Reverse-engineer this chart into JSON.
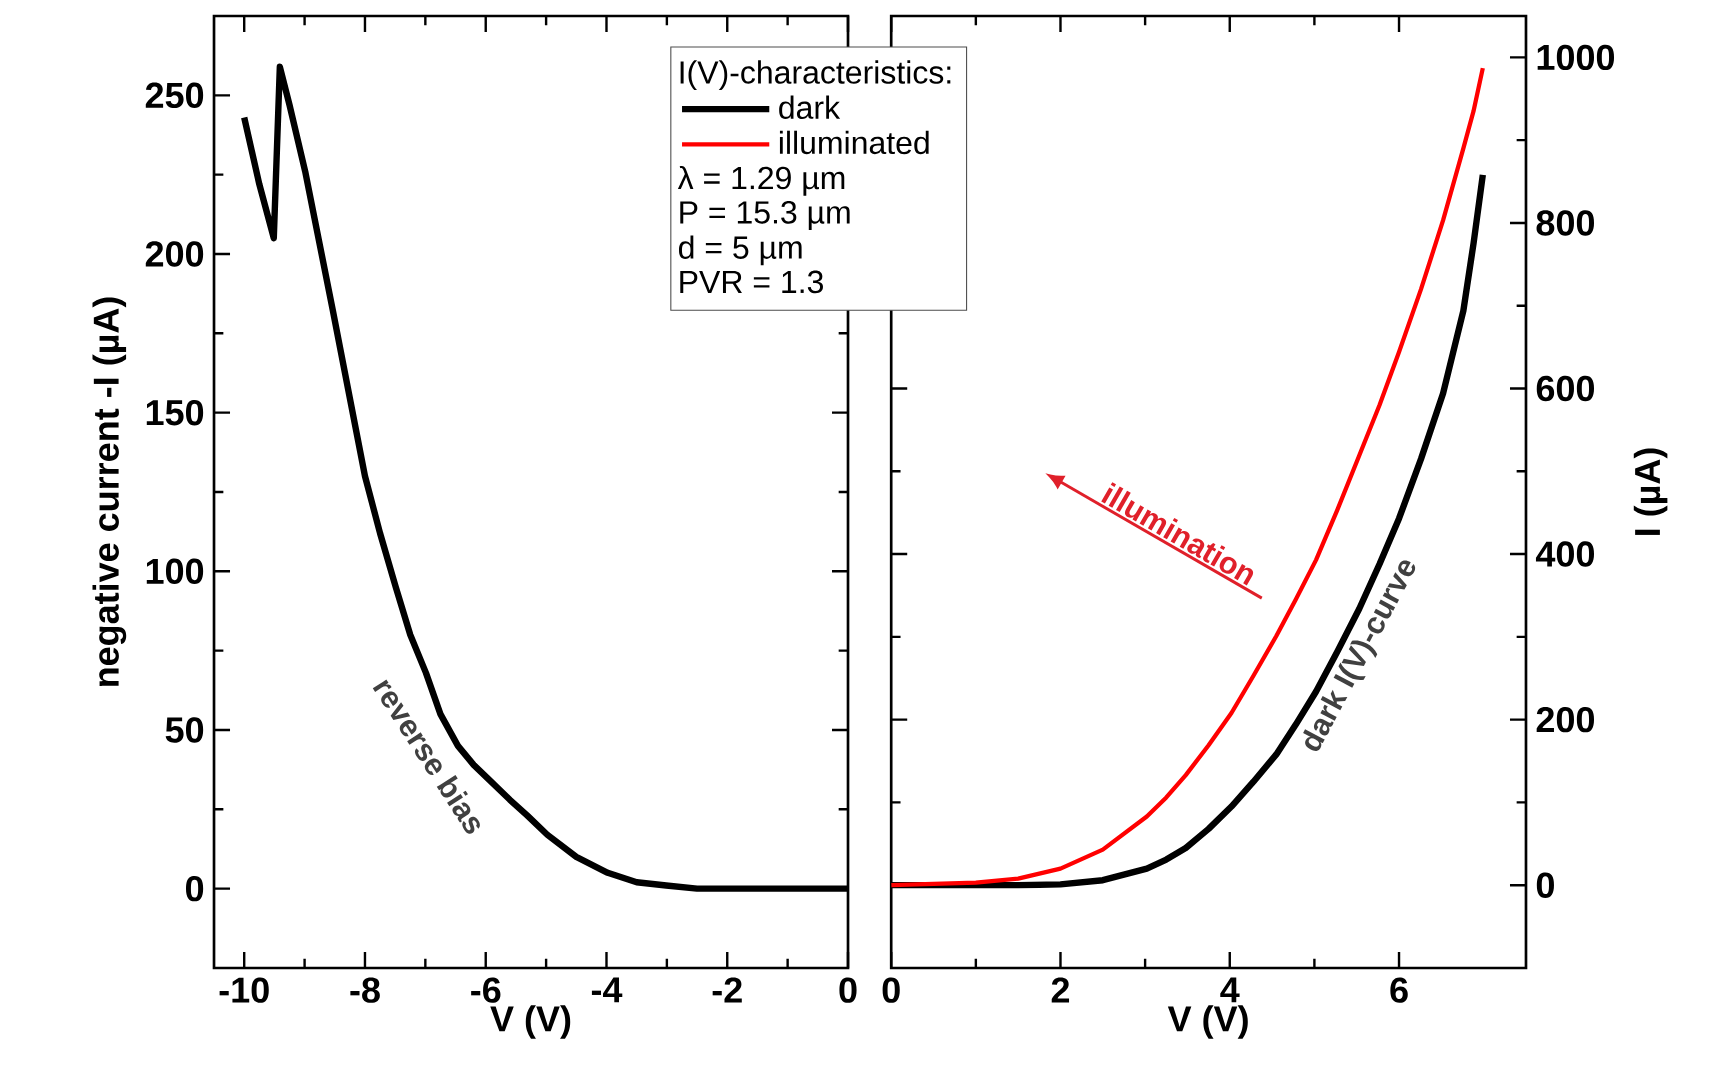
{
  "chart_data": [
    {
      "type": "line",
      "xlabel": "V (V)",
      "ylabel": "negative current -I (µA)",
      "xlim": [
        -10.5,
        0
      ],
      "xticks": [
        -10,
        -8,
        -6,
        -4,
        -2,
        0
      ],
      "ylim": [
        -25,
        275
      ],
      "yticks": [
        0,
        50,
        100,
        150,
        200,
        250
      ],
      "grid": false,
      "legend": false,
      "x": [
        -10,
        -9.75,
        -9.51,
        -9.41,
        -9.25,
        -8.99,
        -8.53,
        -8.0,
        -7.75,
        -7.49,
        -7.25,
        -6.99,
        -6.75,
        -6.46,
        -6.2,
        -5.98,
        -5.6,
        -5.31,
        -4.98,
        -4.5,
        -3.98,
        -3.5,
        -3.01,
        -2.5,
        -2,
        0
      ],
      "series": [
        {
          "color": "#000000",
          "values": [
            243,
            222,
            205,
            259,
            247,
            226,
            182,
            130,
            112,
            95,
            80,
            68,
            55,
            45,
            39,
            35,
            28,
            23,
            17,
            10,
            5,
            2,
            1,
            0,
            0,
            0
          ]
        }
      ],
      "annotations": [
        "reverse bias"
      ]
    },
    {
      "type": "line",
      "xlabel": "V (V)",
      "y2label": "I (µA)",
      "xlim": [
        0,
        7.5
      ],
      "xticks": [
        0,
        2,
        4,
        6
      ],
      "y2lim": [
        -100,
        1050
      ],
      "y2ticks": [
        0,
        200,
        400,
        600,
        800,
        1000
      ],
      "grid": false,
      "legend": "top left",
      "legend_title": "I(V)-characteristics:",
      "x": [
        0,
        1,
        1.5,
        2,
        2.5,
        3.02,
        3.25,
        3.48,
        3.75,
        4.02,
        4.28,
        4.55,
        4.78,
        5.02,
        5.27,
        5.53,
        5.77,
        6.0,
        6.26,
        6.52,
        6.76,
        6.88,
        6.99
      ],
      "series": [
        {
          "name": "dark",
          "color": "#000000",
          "axis": "y2",
          "values": [
            0,
            0,
            0,
            1,
            6,
            20,
            31,
            45,
            68,
            95,
            125,
            158,
            194,
            234,
            282,
            334,
            388,
            443,
            515,
            594,
            694,
            775,
            858
          ]
        },
        {
          "name": "illuminated",
          "color": "#ff0000",
          "axis": "y2",
          "values": [
            0,
            3,
            8,
            20,
            43,
            83,
            106,
            133,
            169,
            208,
            253,
            301,
            345,
            393,
            453,
            519,
            580,
            644,
            720,
            803,
            890,
            935,
            987
          ]
        }
      ],
      "annotations": [
        "λ = 1.29 µm",
        "P = 15.3 µm",
        "d = 5 µm",
        "PVR = 1.3",
        "dark I(V)-curve",
        "illumination"
      ]
    }
  ]
}
